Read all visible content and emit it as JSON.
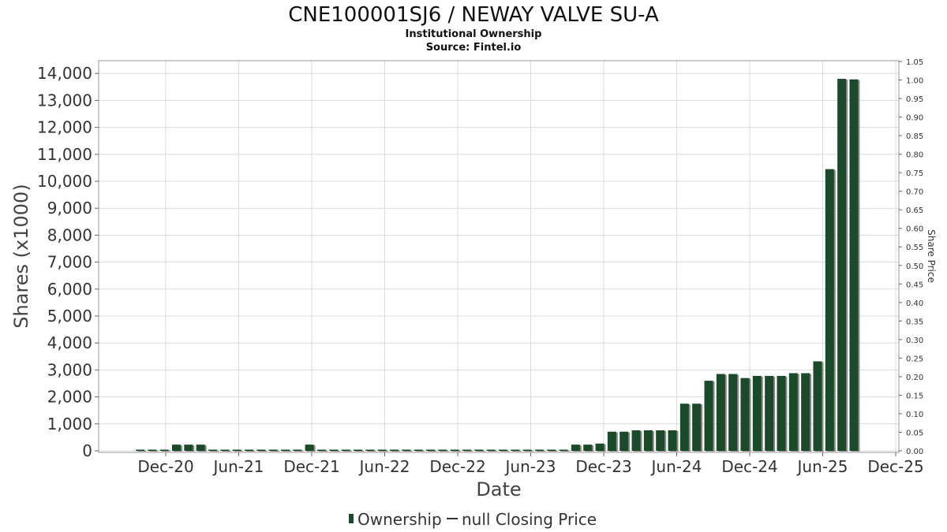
{
  "chart_data": {
    "type": "bar",
    "title": "CNE100001SJ6 / NEWAY VALVE SU-A",
    "subtitle": "Institutional Ownership",
    "source": "Source: Fintel.io",
    "xlabel": "Date",
    "ylabel": "Shares (x1000)",
    "y2label": "Share Price",
    "ylim": [
      0,
      14500
    ],
    "y2lim": [
      0,
      1.05
    ],
    "yticks": [
      "0",
      "1,000",
      "2,000",
      "3,000",
      "4,000",
      "5,000",
      "6,000",
      "7,000",
      "8,000",
      "9,000",
      "10,000",
      "11,000",
      "12,000",
      "13,000",
      "14,000"
    ],
    "y2ticks": [
      "0.00",
      "0.05",
      "0.10",
      "0.15",
      "0.20",
      "0.25",
      "0.30",
      "0.35",
      "0.40",
      "0.45",
      "0.50",
      "0.55",
      "0.60",
      "0.65",
      "0.70",
      "0.75",
      "0.80",
      "0.85",
      "0.90",
      "0.95",
      "1.00",
      "1.05"
    ],
    "xticks": [
      "Dec-20",
      "Jun-21",
      "Dec-21",
      "Jun-22",
      "Dec-22",
      "Jun-23",
      "Dec-23",
      "Jun-24",
      "Dec-24",
      "Jun-25",
      "Dec-25"
    ],
    "grid": true,
    "legend": {
      "placement": "bottom",
      "items": [
        {
          "label": "Ownership",
          "color": "#1a4a2a"
        },
        {
          "label": "null Closing Price",
          "color": "#333333"
        }
      ]
    },
    "colors": {
      "bar": "#1a4a2a",
      "bar_shadow": "#8a8a8a"
    },
    "series": [
      {
        "name": "Ownership",
        "values": [
          30,
          30,
          30,
          230,
          230,
          230,
          40,
          40,
          40,
          40,
          40,
          40,
          40,
          40,
          230,
          40,
          40,
          40,
          40,
          40,
          40,
          40,
          40,
          40,
          40,
          40,
          40,
          40,
          40,
          40,
          40,
          40,
          40,
          40,
          40,
          40,
          230,
          230,
          270,
          710,
          710,
          760,
          760,
          760,
          760,
          1750,
          1750,
          2600,
          2850,
          2850,
          2700,
          2780,
          2780,
          2780,
          2880,
          2880,
          3320,
          10450,
          13800,
          13780
        ]
      }
    ]
  }
}
